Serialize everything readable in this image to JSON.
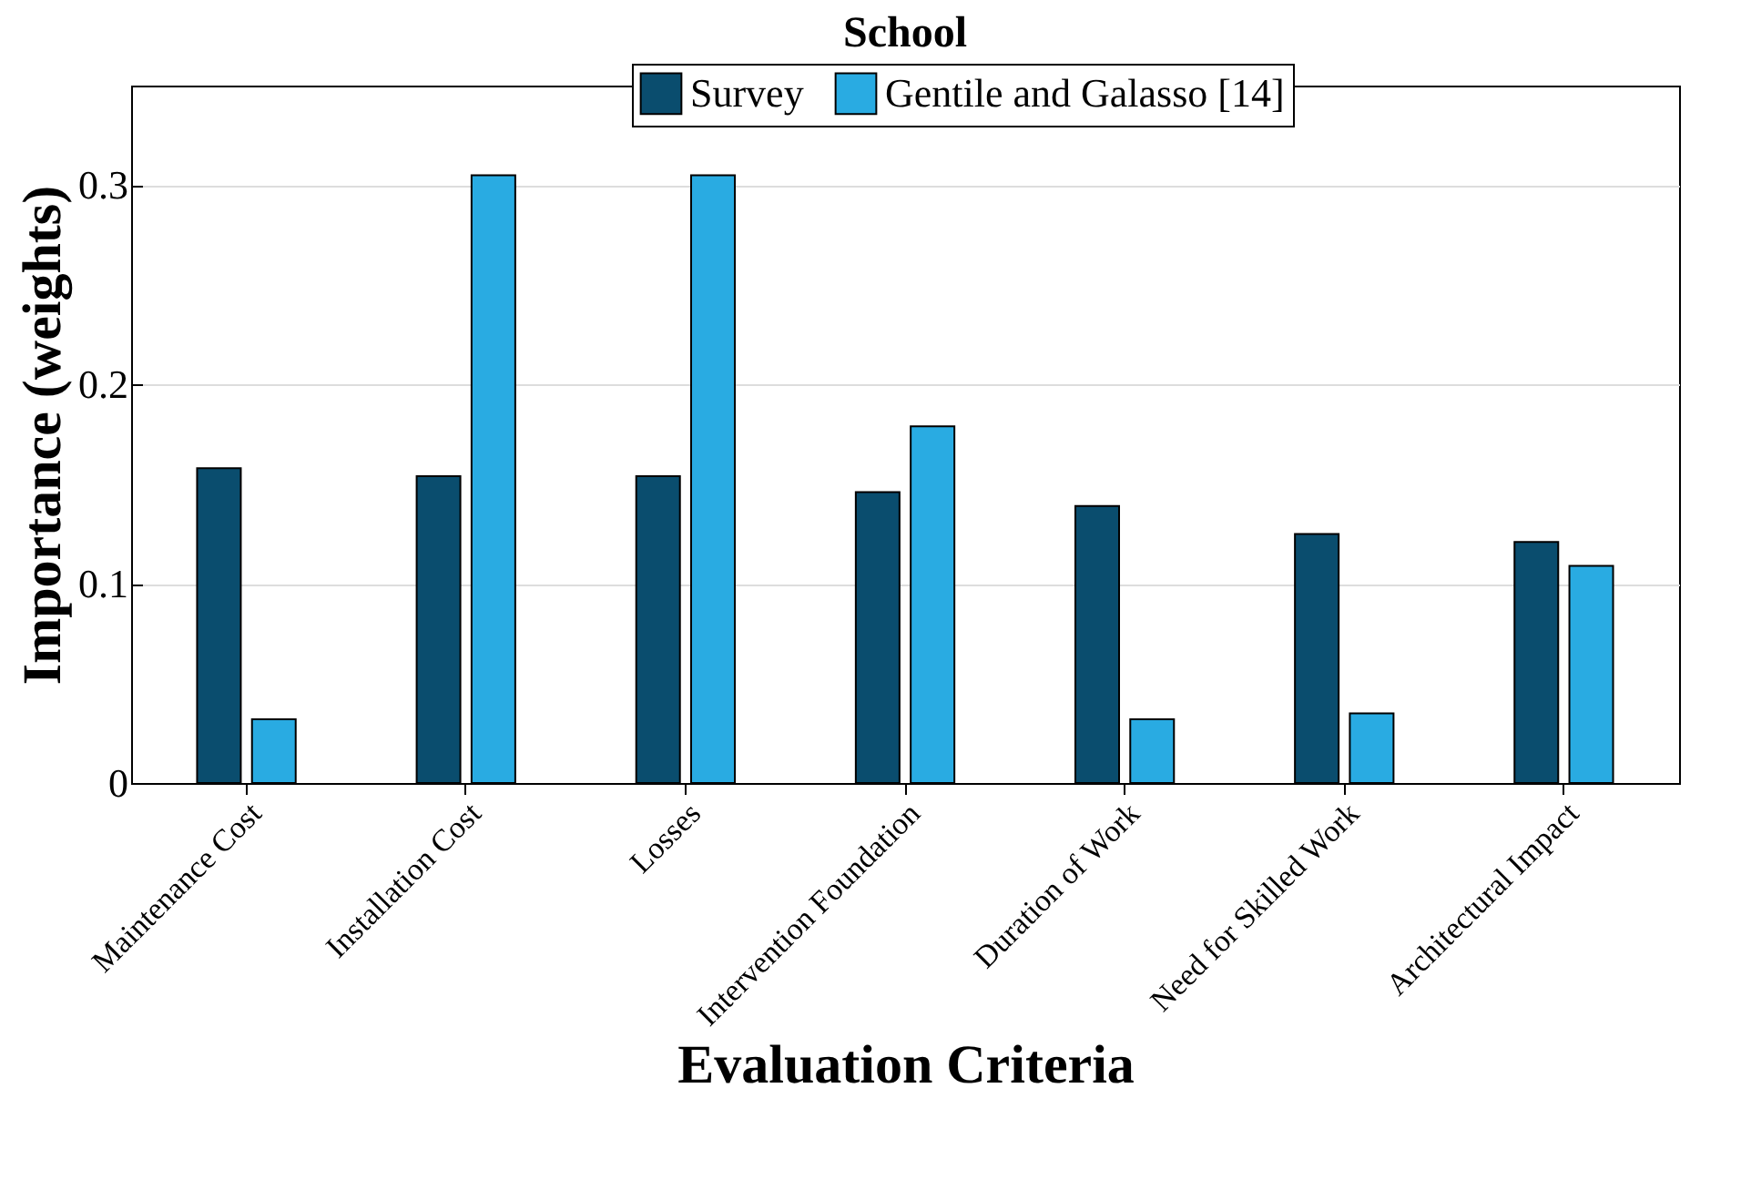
{
  "chart_data": {
    "type": "bar",
    "title": "School",
    "xlabel": "Evaluation Criteria",
    "ylabel": "Importance (weights)",
    "categories": [
      "Maintenance Cost",
      "Installation Cost",
      "Losses",
      "Intervention Foundation",
      "Duration of Work",
      "Need for Skilled Work",
      "Architectural Impact"
    ],
    "series": [
      {
        "name": "Survey",
        "color": "#0a4d6e",
        "values": [
          0.158,
          0.154,
          0.154,
          0.146,
          0.139,
          0.125,
          0.121
        ]
      },
      {
        "name": "Gentile and Galasso [14]",
        "color": "#29abe2",
        "values": [
          0.032,
          0.305,
          0.305,
          0.179,
          0.032,
          0.035,
          0.109
        ]
      }
    ],
    "ylim": [
      0,
      0.35
    ],
    "yticks": [
      0,
      0.1,
      0.2,
      0.3
    ],
    "grid": "y",
    "legend": "top"
  }
}
